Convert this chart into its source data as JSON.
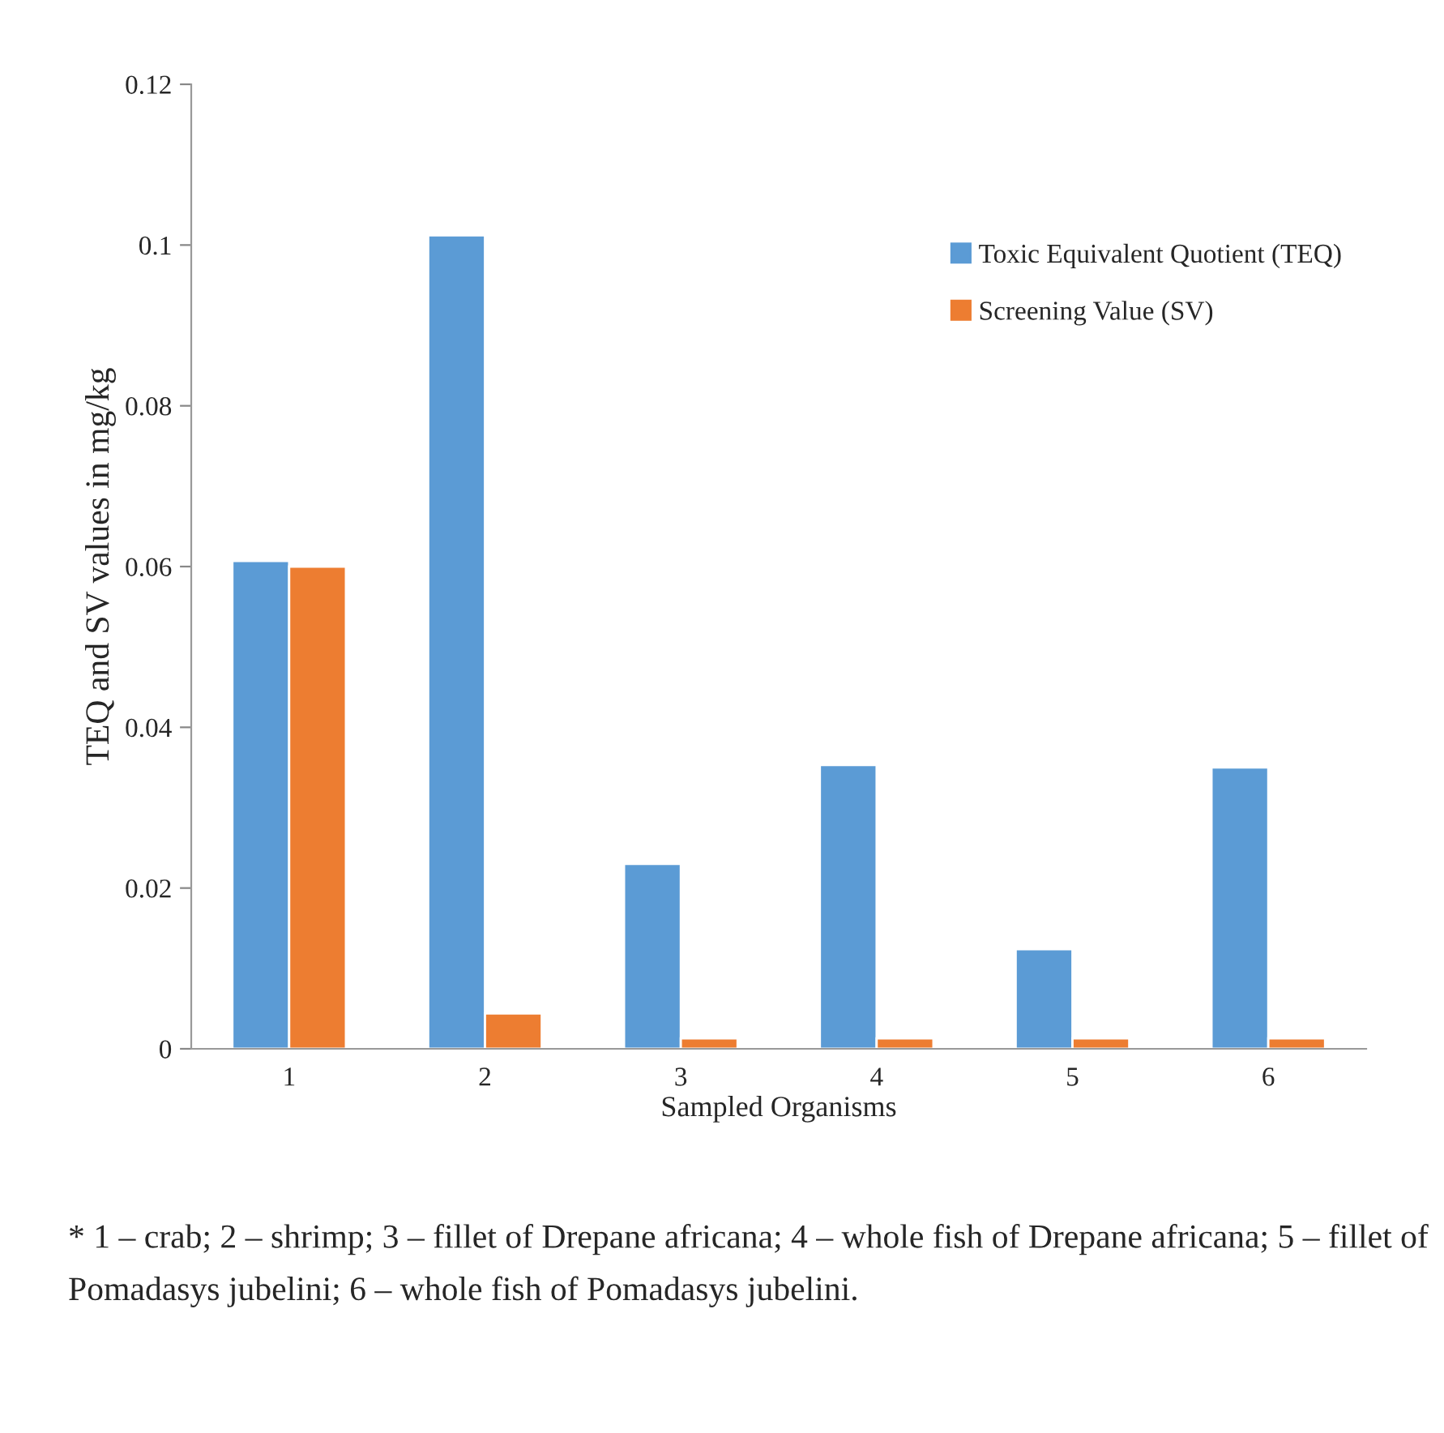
{
  "chart_data": {
    "type": "bar",
    "xlabel": "Sampled Organisms",
    "ylabel": "TEQ and SV values in mg/kg",
    "categories": [
      "1",
      "2",
      "3",
      "4",
      "5",
      "6"
    ],
    "series": [
      {
        "name": "Toxic Equivalent Quotient (TEQ)",
        "color": "#5b9bd5",
        "values": [
          0.0607,
          0.1012,
          0.023,
          0.0353,
          0.0124,
          0.035
        ]
      },
      {
        "name": "Screening Value (SV)",
        "color": "#ed7d31",
        "values": [
          0.06,
          0.0044,
          0.0013,
          0.0013,
          0.0013,
          0.0013
        ]
      }
    ],
    "ylim": [
      0,
      0.12
    ],
    "yticks": [
      {
        "value": 0,
        "label": "0"
      },
      0.02,
      0.04,
      0.06,
      0.08,
      {
        "value": 0.1,
        "label": "0.1"
      },
      0.12
    ],
    "grid": false,
    "legend": "top right",
    "annotations": [
      "* 1 – crab; 2 – shrimp; 3 – fillet of Drepane africana; 4 – whole fish of Drepane africana; 5 – fillet of Pomadasys jubelini; 6 – whole fish of Pomadasys jubelini."
    ]
  }
}
